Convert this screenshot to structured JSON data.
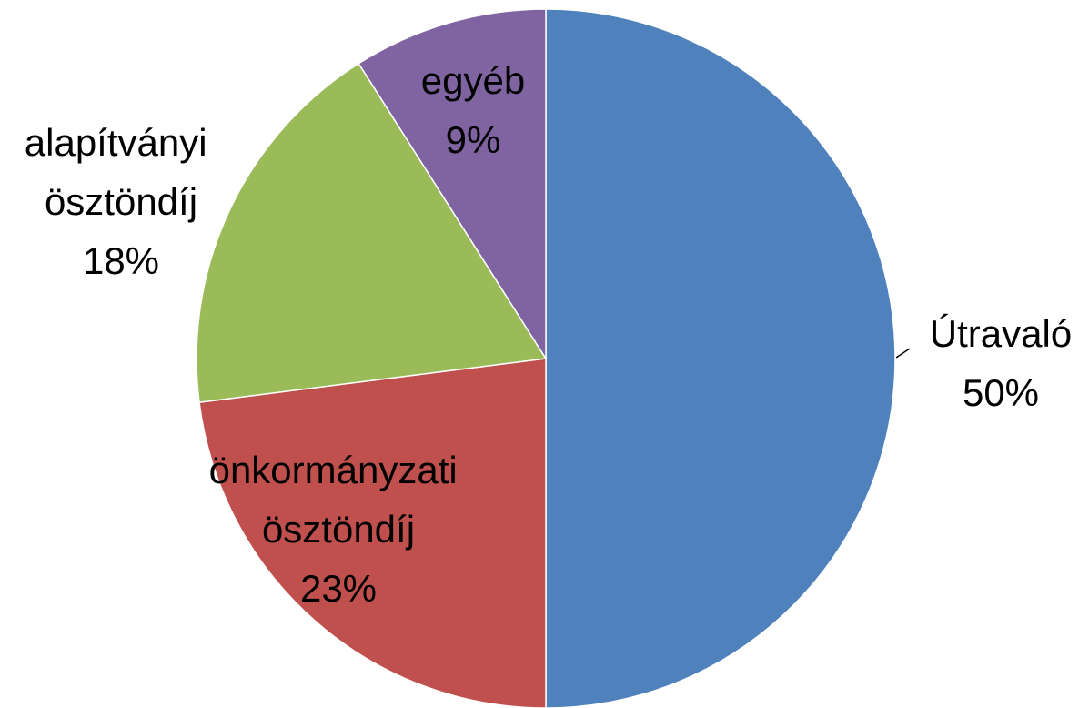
{
  "chart_data": {
    "type": "pie",
    "categories": [
      "Útravaló",
      "önkormányzati ösztöndíj",
      "alapítványi ösztöndíj",
      "egyéb"
    ],
    "values": [
      50,
      23,
      18,
      9
    ],
    "value_labels": [
      "50%",
      "23%",
      "18%",
      "9%"
    ],
    "colors": [
      "#4f81bd",
      "#c0504d",
      "#9bbb59",
      "#8064a2"
    ]
  }
}
